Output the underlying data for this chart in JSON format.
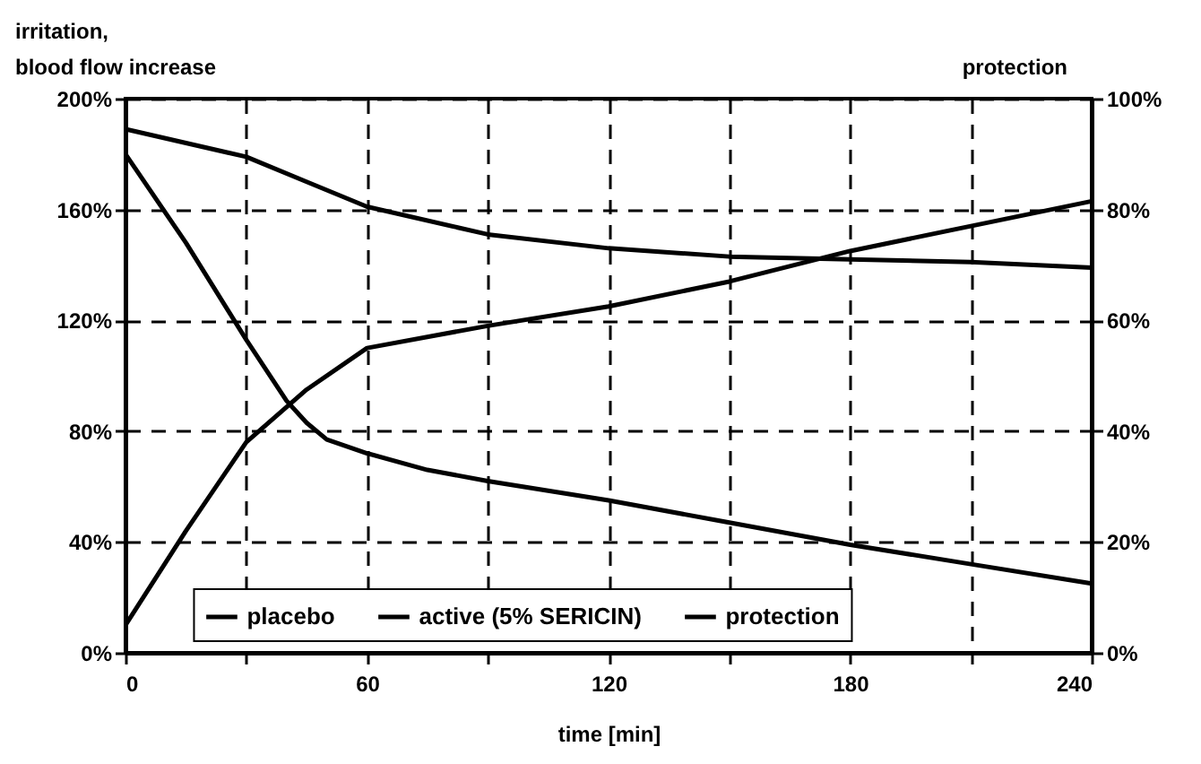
{
  "chart_data": {
    "type": "line",
    "xlabel": "time [min]",
    "ylabel": "irritation,\nblood flow increase",
    "y2label": "protection",
    "xlim": [
      0,
      240
    ],
    "xticks": [
      0,
      {
        "value": 30,
        "label": null
      },
      60,
      {
        "value": 90,
        "label": null
      },
      120,
      {
        "value": 150,
        "label": null
      },
      180,
      {
        "value": 210,
        "label": null
      },
      240
    ],
    "ylim": [
      0,
      200
    ],
    "yticks": [
      {
        "value": 0,
        "label": "0%"
      },
      {
        "value": 40,
        "label": "40%"
      },
      {
        "value": 80,
        "label": "80%"
      },
      {
        "value": 120,
        "label": "120%"
      },
      {
        "value": 160,
        "label": "160%"
      },
      {
        "value": 200,
        "label": "200%"
      }
    ],
    "y2lim": [
      0,
      100
    ],
    "y2ticks": [
      {
        "value": 0,
        "label": "0%"
      },
      {
        "value": 20,
        "label": "20%"
      },
      {
        "value": 40,
        "label": "40%"
      },
      {
        "value": 60,
        "label": "60%"
      },
      {
        "value": 80,
        "label": "80%"
      },
      {
        "value": 100,
        "label": "100%"
      }
    ],
    "grid": true,
    "legend": "bottom",
    "marker": "none",
    "line_style": "solid",
    "series": [
      {
        "name": "placebo",
        "color": "#000000",
        "x": [
          0,
          30,
          45,
          60,
          90,
          120,
          150,
          180,
          210,
          240
        ],
        "values": [
          189,
          179,
          170,
          161,
          151,
          146,
          143,
          142,
          141,
          139
        ]
      },
      {
        "name": "active (5% SERICIN)",
        "color": "#000000",
        "x": [
          0,
          15,
          30,
          40,
          45,
          50,
          60,
          75,
          90,
          120,
          150,
          180,
          210,
          240
        ],
        "values": [
          180,
          148,
          113,
          91,
          83,
          77,
          72,
          66,
          62,
          55,
          47,
          39,
          32,
          25
        ]
      },
      {
        "name": "protection",
        "color": "#000000",
        "axis": "y2",
        "x": [
          0,
          15,
          30,
          45,
          60,
          90,
          120,
          150,
          180,
          210,
          240
        ],
        "values": [
          5,
          22,
          38,
          47.5,
          55,
          59,
          62.5,
          67,
          72.5,
          77,
          81.5
        ]
      }
    ]
  }
}
